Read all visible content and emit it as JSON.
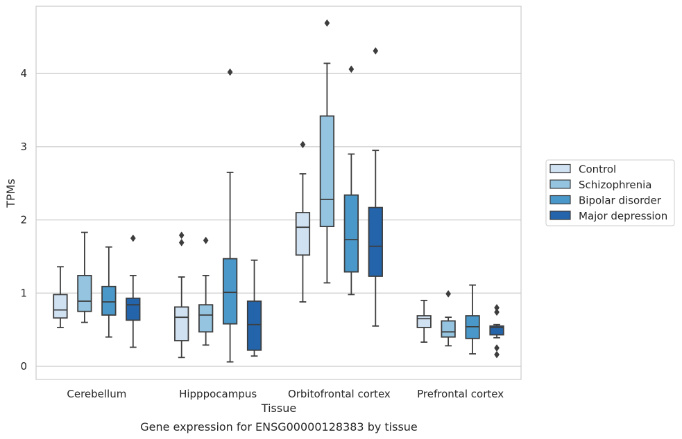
{
  "caption": "Gene expression for ENSG00000128383 by tissue",
  "chart_data": {
    "type": "box",
    "xlabel": "Tissue",
    "ylabel": "TPMs",
    "ylim": [
      -0.18,
      4.92
    ],
    "yticks": [
      0,
      1,
      2,
      3,
      4
    ],
    "grid": "horizontal",
    "legend_position": "right",
    "categories": [
      "Cerebellum",
      "Hipppocampus",
      "Orbitofrontal cortex",
      "Prefrontal cortex"
    ],
    "series": [
      {
        "name": "Control",
        "color": "#d0e1f2",
        "boxes": [
          {
            "whislo": 0.53,
            "q1": 0.66,
            "med": 0.77,
            "q3": 0.98,
            "whishi": 1.36,
            "fliers": []
          },
          {
            "whislo": 0.12,
            "q1": 0.35,
            "med": 0.67,
            "q3": 0.81,
            "whishi": 1.22,
            "fliers": [
              1.69,
              1.79
            ]
          },
          {
            "whislo": 0.88,
            "q1": 1.52,
            "med": 1.9,
            "q3": 2.1,
            "whishi": 2.63,
            "fliers": [
              3.03
            ]
          },
          {
            "whislo": 0.33,
            "q1": 0.53,
            "med": 0.65,
            "q3": 0.69,
            "whishi": 0.9,
            "fliers": []
          }
        ]
      },
      {
        "name": "Schizophrenia",
        "color": "#94c4df",
        "boxes": [
          {
            "whislo": 0.6,
            "q1": 0.75,
            "med": 0.89,
            "q3": 1.24,
            "whishi": 1.83,
            "fliers": []
          },
          {
            "whislo": 0.29,
            "q1": 0.47,
            "med": 0.7,
            "q3": 0.84,
            "whishi": 1.24,
            "fliers": [
              1.72
            ]
          },
          {
            "whislo": 1.14,
            "q1": 1.91,
            "med": 2.28,
            "q3": 3.42,
            "whishi": 4.14,
            "fliers": [
              4.69
            ]
          },
          {
            "whislo": 0.28,
            "q1": 0.4,
            "med": 0.47,
            "q3": 0.62,
            "whishi": 0.67,
            "fliers": [
              0.99
            ]
          }
        ]
      },
      {
        "name": "Bipolar disorder",
        "color": "#4a98c9",
        "boxes": [
          {
            "whislo": 0.4,
            "q1": 0.7,
            "med": 0.88,
            "q3": 1.09,
            "whishi": 1.63,
            "fliers": []
          },
          {
            "whislo": 0.06,
            "q1": 0.58,
            "med": 1.01,
            "q3": 1.47,
            "whishi": 2.65,
            "fliers": [
              4.02
            ]
          },
          {
            "whislo": 0.98,
            "q1": 1.29,
            "med": 1.73,
            "q3": 2.34,
            "whishi": 2.9,
            "fliers": [
              4.06
            ]
          },
          {
            "whislo": 0.17,
            "q1": 0.38,
            "med": 0.54,
            "q3": 0.69,
            "whishi": 1.11,
            "fliers": []
          }
        ]
      },
      {
        "name": "Major depression",
        "color": "#2464ab",
        "boxes": [
          {
            "whislo": 0.26,
            "q1": 0.63,
            "med": 0.84,
            "q3": 0.93,
            "whishi": 1.24,
            "fliers": [
              1.75
            ]
          },
          {
            "whislo": 0.14,
            "q1": 0.22,
            "med": 0.57,
            "q3": 0.89,
            "whishi": 1.45,
            "fliers": []
          },
          {
            "whislo": 0.55,
            "q1": 1.23,
            "med": 1.64,
            "q3": 2.17,
            "whishi": 2.95,
            "fliers": [
              4.31
            ]
          },
          {
            "whislo": 0.39,
            "q1": 0.43,
            "med": 0.53,
            "q3": 0.55,
            "whishi": 0.57,
            "fliers": [
              0.16,
              0.25,
              0.74,
              0.8
            ]
          }
        ]
      }
    ]
  }
}
